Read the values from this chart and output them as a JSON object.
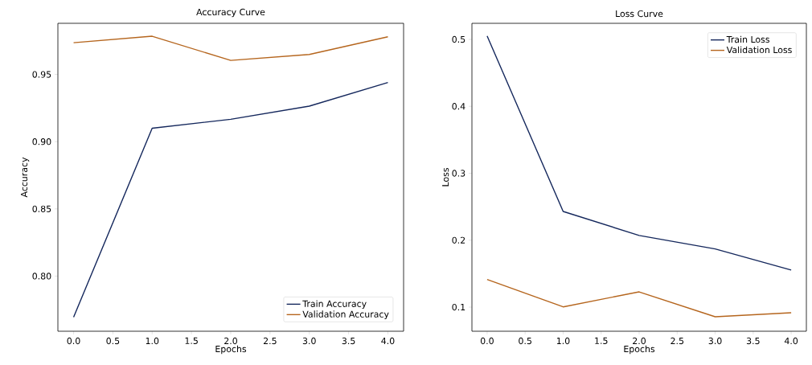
{
  "chart_data": [
    {
      "type": "line",
      "title": "Accuracy Curve",
      "xlabel": "Epochs",
      "ylabel": "Accuracy",
      "x": [
        0,
        1,
        2,
        3,
        4
      ],
      "series": [
        {
          "name": "Train Accuracy",
          "color": "#14275c",
          "values": [
            0.7694,
            0.91,
            0.9166,
            0.9264,
            0.944
          ]
        },
        {
          "name": "Validation Accuracy",
          "color": "#b5651d",
          "values": [
            0.9736,
            0.9784,
            0.9604,
            0.9648,
            0.978
          ]
        }
      ],
      "xlim": [
        -0.2,
        4.2
      ],
      "ylim": [
        0.759,
        0.988
      ],
      "xticks": [
        {
          "value": 0,
          "label": "0.0"
        },
        {
          "value": 0.5,
          "label": "0.5"
        },
        {
          "value": 1,
          "label": "1.0"
        },
        {
          "value": 1.5,
          "label": "1.5"
        },
        {
          "value": 2,
          "label": "2.0"
        },
        {
          "value": 2.5,
          "label": "2.5"
        },
        {
          "value": 3,
          "label": "3.0"
        },
        {
          "value": 3.5,
          "label": "3.5"
        },
        {
          "value": 4,
          "label": "4.0"
        }
      ],
      "yticks": [
        {
          "value": 0.8,
          "label": "0.80"
        },
        {
          "value": 0.85,
          "label": "0.85"
        },
        {
          "value": 0.9,
          "label": "0.90"
        },
        {
          "value": 0.95,
          "label": "0.95"
        }
      ],
      "legend": "bottom right"
    },
    {
      "type": "line",
      "title": "Loss Curve",
      "xlabel": "Epochs",
      "ylabel": "Loss",
      "x": [
        0,
        1,
        2,
        3,
        4
      ],
      "series": [
        {
          "name": "Train Loss",
          "color": "#14275c",
          "values": [
            0.505,
            0.243,
            0.207,
            0.187,
            0.1555
          ]
        },
        {
          "name": "Validation Loss",
          "color": "#b5651d",
          "values": [
            0.1413,
            0.1004,
            0.1228,
            0.0856,
            0.0916
          ]
        }
      ],
      "xlim": [
        -0.2,
        4.2
      ],
      "ylim": [
        0.064,
        0.524
      ],
      "xticks": [
        {
          "value": 0,
          "label": "0.0"
        },
        {
          "value": 0.5,
          "label": "0.5"
        },
        {
          "value": 1,
          "label": "1.0"
        },
        {
          "value": 1.5,
          "label": "1.5"
        },
        {
          "value": 2,
          "label": "2.0"
        },
        {
          "value": 2.5,
          "label": "2.5"
        },
        {
          "value": 3,
          "label": "3.0"
        },
        {
          "value": 3.5,
          "label": "3.5"
        },
        {
          "value": 4,
          "label": "4.0"
        }
      ],
      "yticks": [
        0.1,
        0.2,
        0.3,
        0.4,
        0.5
      ],
      "legend": "top right"
    }
  ]
}
